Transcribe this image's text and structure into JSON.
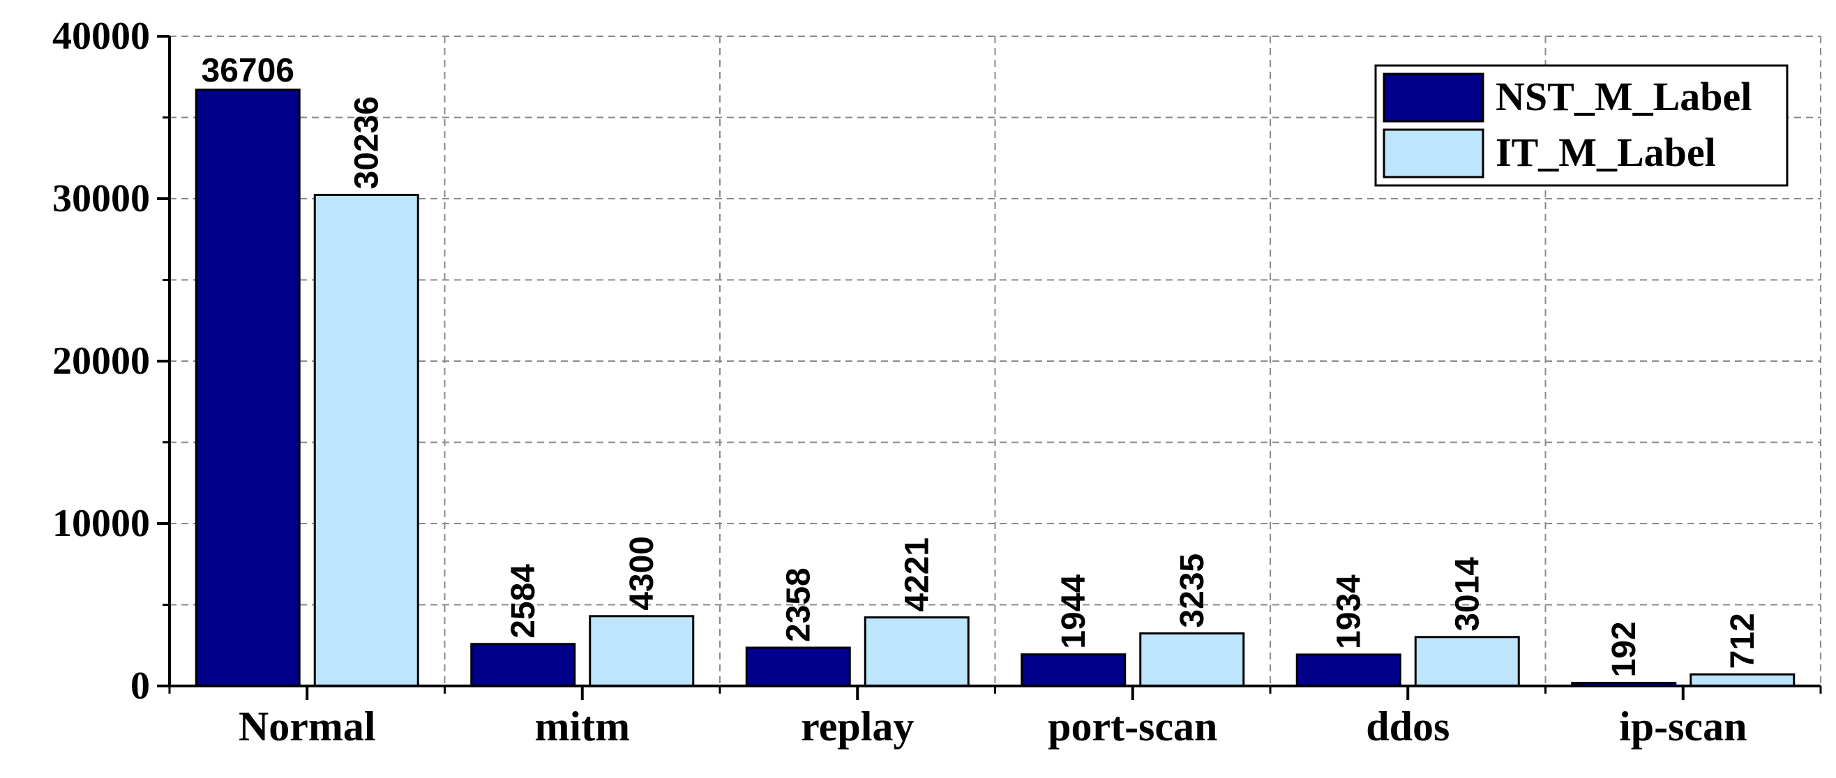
{
  "chart_data": {
    "type": "bar",
    "title": "",
    "xlabel": "",
    "ylabel": "",
    "categories": [
      "Normal",
      "mitm",
      "replay",
      "port-scan",
      "ddos",
      "ip-scan"
    ],
    "series": [
      {
        "name": "NST_M_Label",
        "color": "#00008B",
        "values": [
          36706,
          2584,
          2358,
          1944,
          1934,
          192
        ]
      },
      {
        "name": "IT_M_Label",
        "color": "#BDE5FB",
        "values": [
          30236,
          4300,
          4221,
          3235,
          3014,
          712
        ]
      }
    ],
    "ylim": [
      0,
      40000
    ],
    "yticks": [
      0,
      10000,
      20000,
      30000,
      40000
    ],
    "grid": true,
    "legend_position": "top-right",
    "data_labels": true
  }
}
